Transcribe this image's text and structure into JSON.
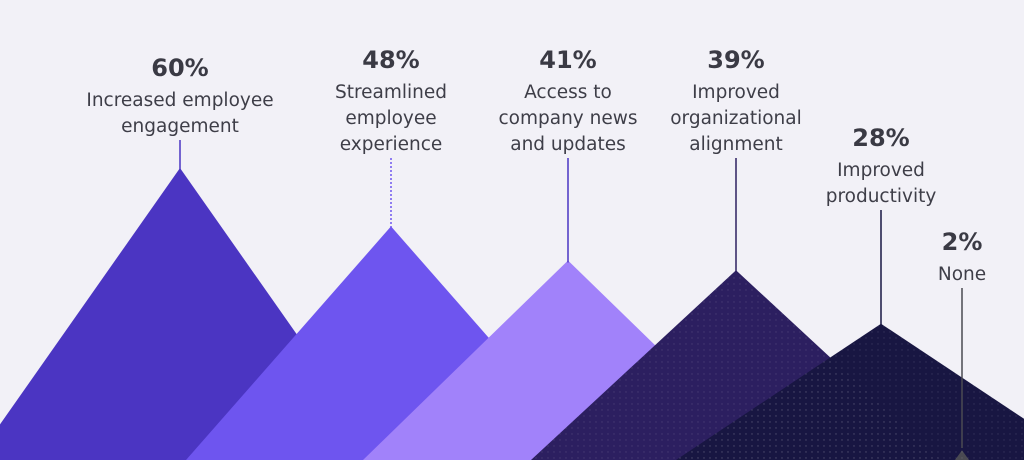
{
  "chart_data": {
    "type": "bar",
    "title": "",
    "xlabel": "",
    "ylabel": "",
    "ylim": [
      0,
      60
    ],
    "unit": "%",
    "grid": false,
    "legend": "none",
    "categories": [
      "Increased employee engagement",
      "Streamlined employee experience",
      "Access to company news and updates",
      "Improved organizational alignment",
      "Improved productivity",
      "None"
    ],
    "values": [
      60,
      48,
      41,
      39,
      28,
      2
    ],
    "label_lines": [
      [
        "Increased employee",
        "engagement"
      ],
      [
        "Streamlined",
        "employee",
        "experience"
      ],
      [
        "Access to",
        "company news",
        "and updates"
      ],
      [
        "Improved",
        "organizational",
        "alignment"
      ],
      [
        "Improved",
        "productivity"
      ],
      [
        "None"
      ]
    ],
    "colors": [
      "#4b35c2",
      "#6e55ef",
      "#a182fa",
      "#2c1f60",
      "#181642",
      "#4a4a52"
    ]
  }
}
